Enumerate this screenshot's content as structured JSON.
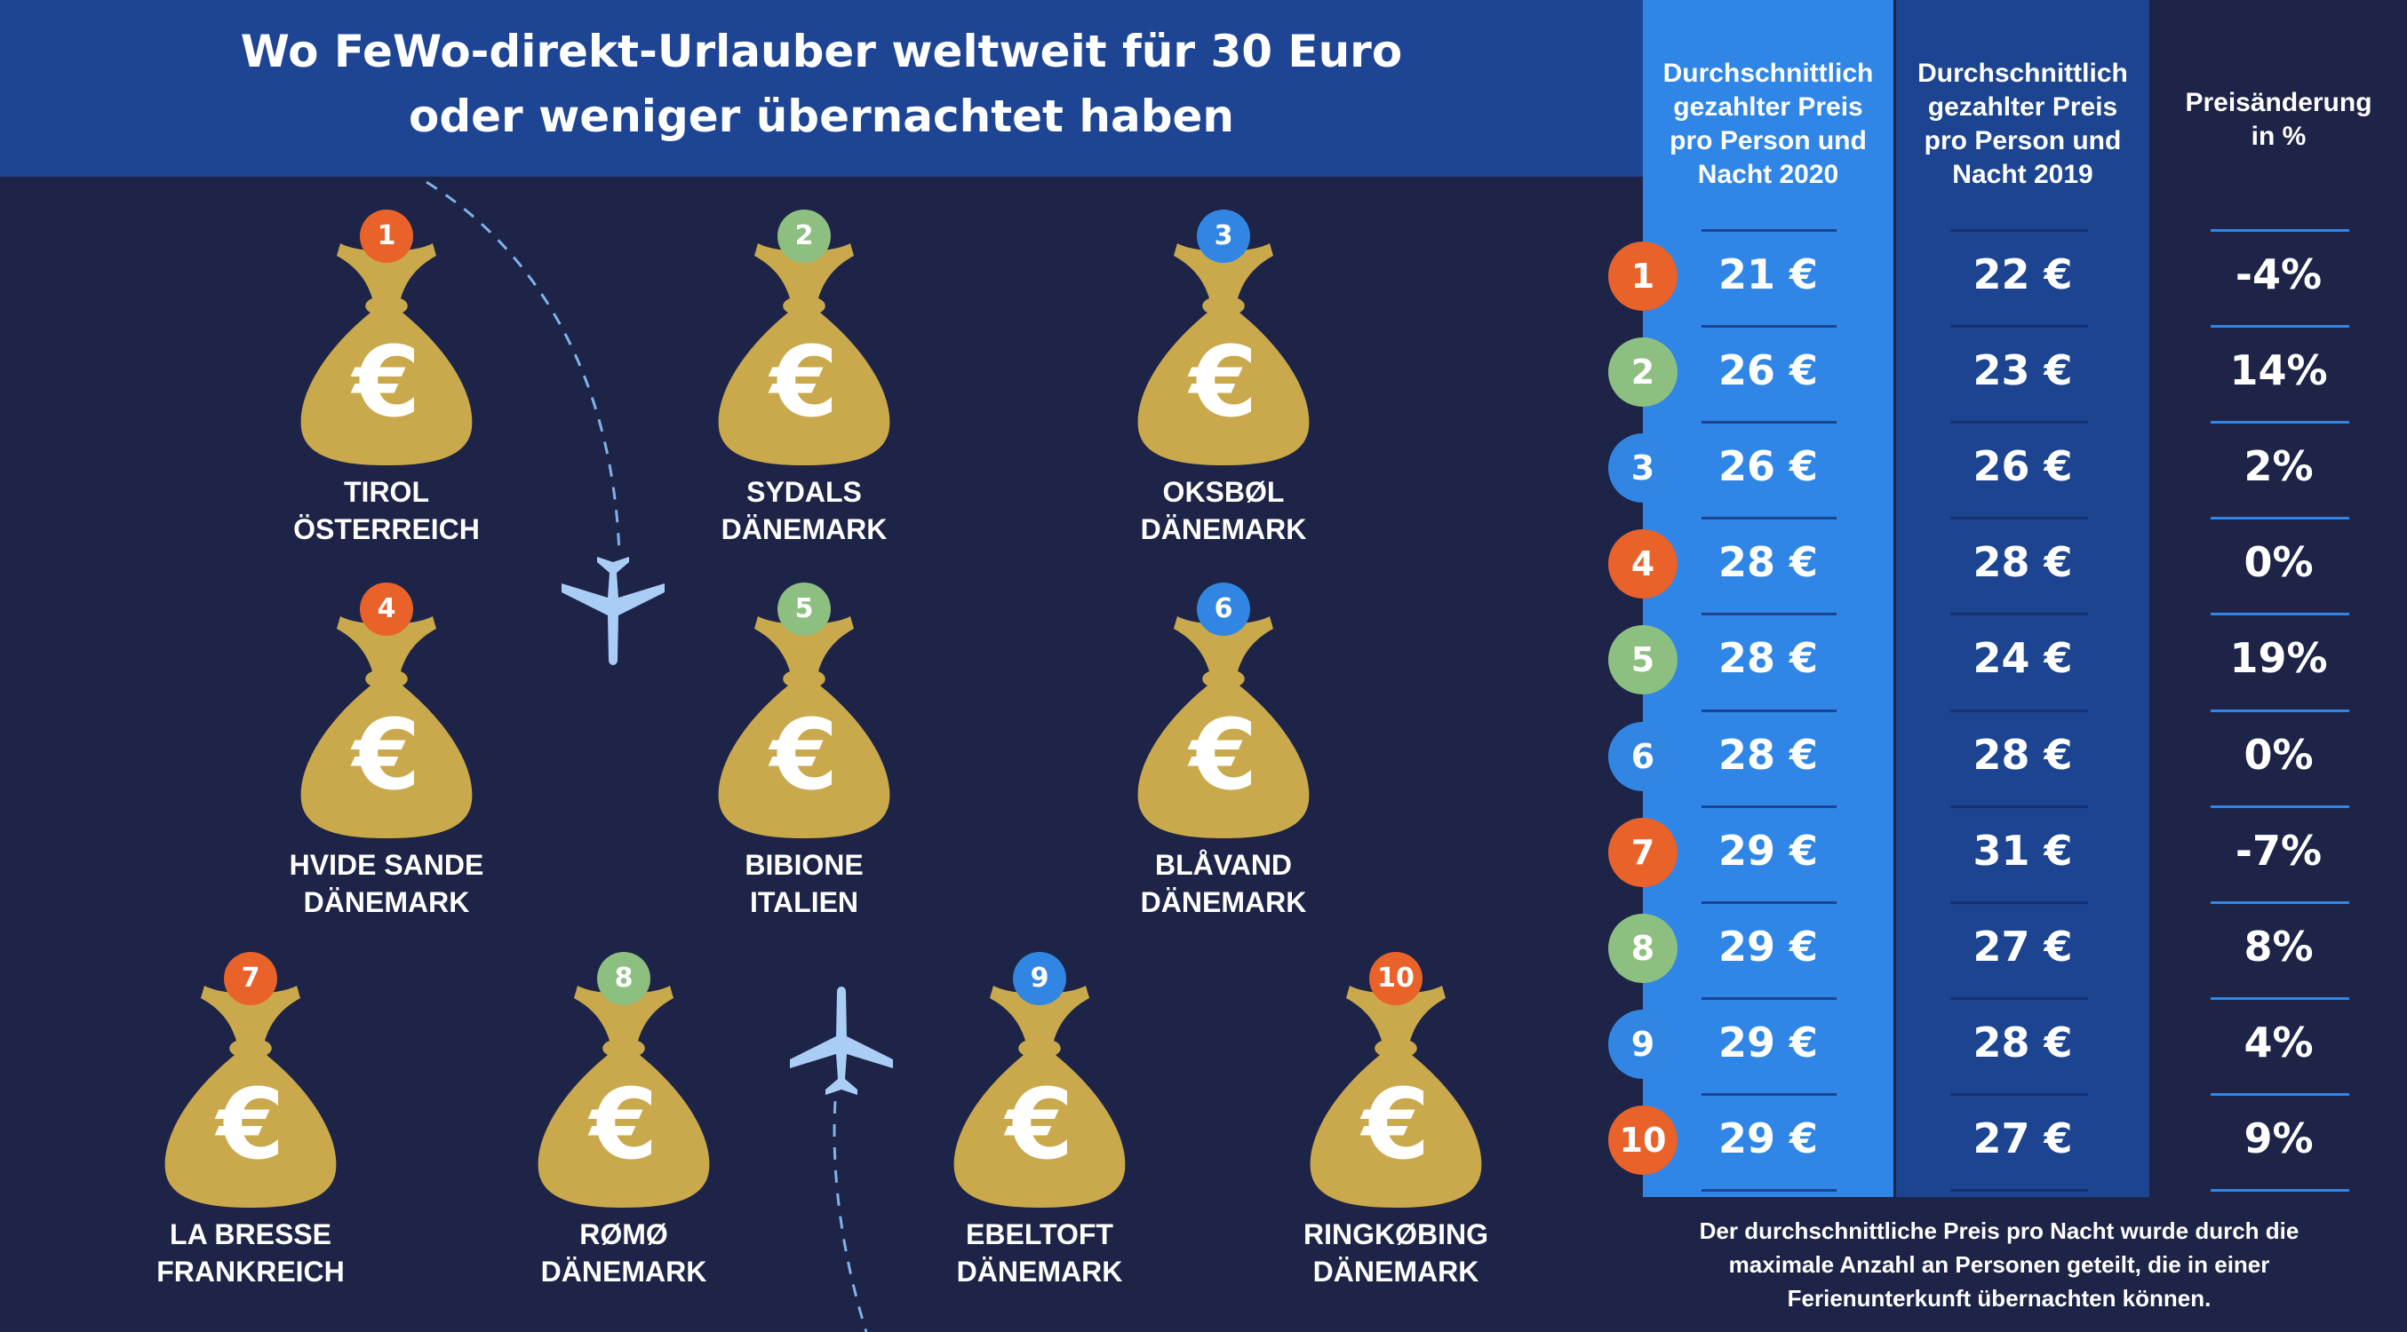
{
  "title": {
    "line1": "Wo FeWo-direkt-Urlauber weltweit für 30 Euro",
    "line2": "oder weniger übernachtet haben"
  },
  "colors": {
    "background": "#1d2447",
    "banner": "#1e4494",
    "col_2020": "#2f86e6",
    "col_2019": "#1c4490",
    "bag": "#c9a94b",
    "orange": "#e8622a",
    "green": "#8dbf80",
    "blue": "#3186e3",
    "plane": "#a9cdf5"
  },
  "table": {
    "headers": {
      "price_2020": [
        "Durchschnittlich",
        "gezahlter Preis",
        "pro Person und",
        "Nacht 2020"
      ],
      "price_2019": [
        "Durchschnittlich",
        "gezahlter Preis",
        "pro Person und",
        "Nacht 2019"
      ],
      "change": [
        "Preisänderung",
        "in %"
      ]
    },
    "rows": [
      {
        "rank": "1",
        "price_2020": "21 €",
        "price_2019": "22 €",
        "change": "-4%",
        "color": "#e8622a"
      },
      {
        "rank": "2",
        "price_2020": "26 €",
        "price_2019": "23 €",
        "change": "14%",
        "color": "#8dbf80"
      },
      {
        "rank": "3",
        "price_2020": "26 €",
        "price_2019": "26 €",
        "change": "2%",
        "color": "#3186e3"
      },
      {
        "rank": "4",
        "price_2020": "28 €",
        "price_2019": "28 €",
        "change": "0%",
        "color": "#e8622a"
      },
      {
        "rank": "5",
        "price_2020": "28 €",
        "price_2019": "24 €",
        "change": "19%",
        "color": "#8dbf80"
      },
      {
        "rank": "6",
        "price_2020": "28 €",
        "price_2019": "28 €",
        "change": "0%",
        "color": "#3186e3"
      },
      {
        "rank": "7",
        "price_2020": "29 €",
        "price_2019": "31 €",
        "change": "-7%",
        "color": "#e8622a"
      },
      {
        "rank": "8",
        "price_2020": "29 €",
        "price_2019": "27 €",
        "change": "8%",
        "color": "#8dbf80"
      },
      {
        "rank": "9",
        "price_2020": "29 €",
        "price_2019": "28 €",
        "change": "4%",
        "color": "#3186e3"
      },
      {
        "rank": "10",
        "price_2020": "29 €",
        "price_2019": "27 €",
        "change": "9%",
        "color": "#e8622a"
      }
    ]
  },
  "destinations": [
    {
      "rank": "1",
      "name": "TIROL",
      "country": "ÖSTERREICH",
      "color": "#e8622a",
      "icon": "money-bag-euro-icon"
    },
    {
      "rank": "2",
      "name": "SYDALS",
      "country": "DÄNEMARK",
      "color": "#8dbf80",
      "icon": "money-bag-euro-icon"
    },
    {
      "rank": "3",
      "name": "OKSBØL",
      "country": "DÄNEMARK",
      "color": "#3186e3",
      "icon": "money-bag-euro-icon"
    },
    {
      "rank": "4",
      "name": "HVIDE SANDE",
      "country": "DÄNEMARK",
      "color": "#e8622a",
      "icon": "money-bag-euro-icon"
    },
    {
      "rank": "5",
      "name": "BIBIONE",
      "country": "ITALIEN",
      "color": "#8dbf80",
      "icon": "money-bag-euro-icon"
    },
    {
      "rank": "6",
      "name": "BLÅVAND",
      "country": "DÄNEMARK",
      "color": "#3186e3",
      "icon": "money-bag-euro-icon"
    },
    {
      "rank": "7",
      "name": "LA BRESSE",
      "country": "FRANKREICH",
      "color": "#e8622a",
      "icon": "money-bag-euro-icon"
    },
    {
      "rank": "8",
      "name": "RØMØ",
      "country": "DÄNEMARK",
      "color": "#8dbf80",
      "icon": "money-bag-euro-icon"
    },
    {
      "rank": "9",
      "name": "EBELTOFT",
      "country": "DÄNEMARK",
      "color": "#3186e3",
      "icon": "money-bag-euro-icon"
    },
    {
      "rank": "10",
      "name": "RINGKØBING",
      "country": "DÄNEMARK",
      "color": "#e8622a",
      "icon": "money-bag-euro-icon"
    }
  ],
  "bag_symbol": "€",
  "footnote": [
    "Der durchschnittliche Preis pro Nacht wurde durch die",
    "maximale Anzahl an Personen geteilt, die in einer",
    "Ferienunterkunft übernachten können."
  ]
}
